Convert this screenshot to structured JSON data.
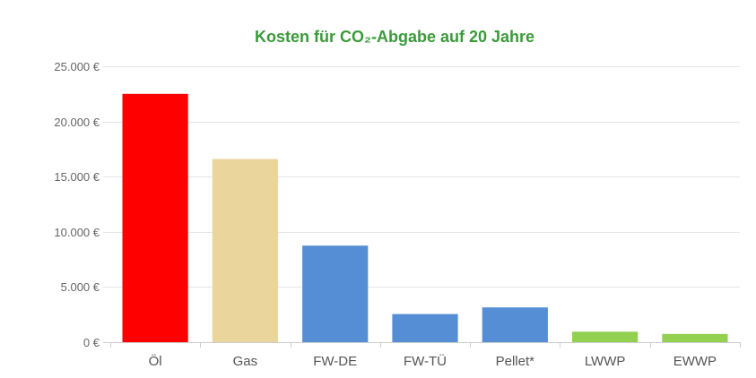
{
  "chart_data": {
    "type": "bar",
    "title": "Kosten für CO₂-Abgabe auf 20 Jahre",
    "xlabel": "",
    "ylabel": "",
    "categories": [
      "Öl",
      "Gas",
      "FW-DE",
      "FW-TÜ",
      "Pellet*",
      "LWWP",
      "EWWP"
    ],
    "values": [
      22500,
      16600,
      8750,
      2550,
      3150,
      950,
      750
    ],
    "bar_colors": [
      "#ff0000",
      "#ead59d",
      "#558ed5",
      "#558ed5",
      "#558ed5",
      "#92d050",
      "#92d050"
    ],
    "ylim": [
      0,
      25000
    ],
    "yticks": [
      0,
      5000,
      10000,
      15000,
      20000,
      25000
    ],
    "ytick_labels": [
      "0 €",
      "5.000 €",
      "10.000 €",
      "15.000 €",
      "20.000 €",
      "25.000 €"
    ],
    "grid": true,
    "legend": "none",
    "title_color": "#3a9a3a",
    "grid_color": "#e6e6e6",
    "axis_color": "#cccccc"
  }
}
